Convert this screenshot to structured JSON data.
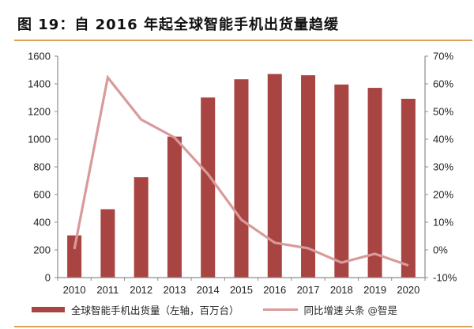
{
  "title": "图 19：自 2016 年起全球智能手机出货量趋缓",
  "colors": {
    "bar": "#A84442",
    "line": "#D99A9A",
    "rule": "#D9A35A",
    "axis": "#8C8C8C"
  },
  "legend": {
    "bar_label": "全球智能手机出货量（左轴，百万台）",
    "line_label": "同比增速",
    "watermark": "头条 @智是"
  },
  "chart_data": {
    "type": "bar",
    "title": "图 19：自 2016 年起全球智能手机出货量趋缓",
    "xlabel": "",
    "categories": [
      "2010",
      "2011",
      "2012",
      "2013",
      "2014",
      "2015",
      "2016",
      "2017",
      "2018",
      "2019",
      "2020"
    ],
    "series": [
      {
        "name": "全球智能手机出货量（左轴，百万台）",
        "type": "bar",
        "axis": "left",
        "values": [
          305,
          494,
          725,
          1019,
          1301,
          1433,
          1471,
          1462,
          1395,
          1371,
          1292
        ]
      },
      {
        "name": "同比增速（右轴）",
        "type": "line",
        "axis": "right",
        "values": [
          0.3,
          62.3,
          47.1,
          40.6,
          27.4,
          10.9,
          2.6,
          0.6,
          -4.6,
          -1.4,
          -5.6
        ]
      }
    ],
    "left_axis": {
      "ylim": [
        0,
        1600
      ],
      "ticks": [
        0,
        200,
        400,
        600,
        800,
        1000,
        1200,
        1400,
        1600
      ]
    },
    "right_axis": {
      "ylim": [
        -10,
        70
      ],
      "ticks": [
        "-10%",
        "0%",
        "10%",
        "20%",
        "30%",
        "40%",
        "50%",
        "60%",
        "70%"
      ]
    },
    "grid": false,
    "legend_position": "bottom"
  }
}
